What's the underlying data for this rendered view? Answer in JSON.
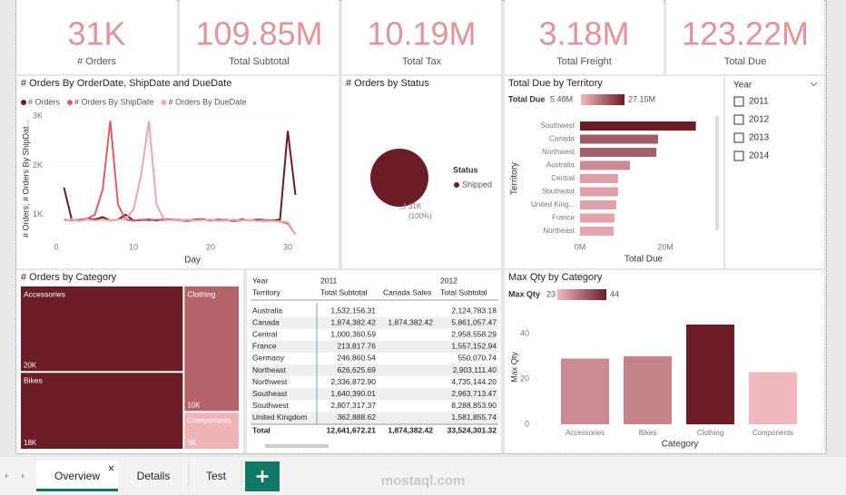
{
  "kpi_cards": [
    {
      "value": "31K",
      "label": "# Orders"
    },
    {
      "value": "109.85M",
      "label": "Total Subtotal"
    },
    {
      "value": "10.19M",
      "label": "Total Tax"
    },
    {
      "value": "3.18M",
      "label": "Total Freight"
    },
    {
      "value": "123.22M",
      "label": "Total Due"
    }
  ],
  "line_chart": {
    "type": "line",
    "title": "# Orders By OrderDate, ShipDate and DueDate",
    "x_label": "Day",
    "y_label": "# Orders, # Orders By ShipDat...",
    "x": [
      1,
      2,
      3,
      4,
      5,
      6,
      7,
      8,
      9,
      10,
      11,
      12,
      13,
      14,
      15,
      16,
      17,
      18,
      19,
      20,
      21,
      22,
      23,
      24,
      25,
      26,
      27,
      28,
      29,
      30,
      31
    ],
    "series": [
      {
        "name": "# Orders",
        "color": "#6b1c27",
        "values": [
          1550,
          900,
          880,
          920,
          900,
          950,
          880,
          900,
          1000,
          880,
          890,
          900,
          880,
          910,
          900,
          890,
          880,
          900,
          910,
          880,
          900,
          890,
          870,
          900,
          880,
          900,
          890,
          880,
          900,
          2700,
          1400
        ]
      },
      {
        "name": "# Orders By ShipDate",
        "color": "#d95f6f",
        "values": [
          900,
          880,
          900,
          920,
          1000,
          1500,
          2900,
          1200,
          900,
          880,
          900,
          880,
          900,
          890,
          900,
          880,
          870,
          890,
          900,
          880,
          890,
          900,
          870,
          880,
          890,
          880,
          870,
          880,
          860,
          820,
          600
        ]
      },
      {
        "name": "# Orders By DueDate",
        "color": "#f0a6b0",
        "values": [
          880,
          900,
          870,
          900,
          880,
          900,
          880,
          900,
          920,
          1100,
          1800,
          2900,
          1200,
          900,
          890,
          880,
          900,
          880,
          890,
          900,
          870,
          880,
          900,
          880,
          890,
          870,
          880,
          870,
          860,
          850,
          600
        ]
      }
    ],
    "xlim": [
      -1,
      32
    ],
    "ylim": [
      500,
      3000
    ],
    "xticks": [
      0,
      10,
      20,
      30
    ],
    "yticks": [
      {
        "value": 1000,
        "label": "1K"
      },
      {
        "value": 2000,
        "label": "2K"
      },
      {
        "value": 3000,
        "label": "3K"
      }
    ]
  },
  "pie_chart": {
    "type": "pie",
    "title": "# Orders by Status",
    "legend_title": "Status",
    "categories": [
      "Shipped"
    ],
    "values": [
      31000
    ],
    "value_labels": [
      "31K"
    ],
    "percent_labels": [
      "(100%)"
    ],
    "colors": [
      "#6b1c27"
    ]
  },
  "territory_chart": {
    "type": "bar",
    "orientation": "horizontal",
    "title": "Total Due by Territory",
    "x_label": "Total Due",
    "y_label": "Territory",
    "legend_title": "Total Due",
    "color_range": [
      {
        "value": 5.48,
        "label": "5.48M"
      },
      {
        "value": 27.15,
        "label": "27.15M"
      }
    ],
    "color_min": "#f2b8bf",
    "color_max": "#6b1c27",
    "categories": [
      "Southwest",
      "Canada",
      "Northwest",
      "Australia",
      "Central",
      "Southeast",
      "United King...",
      "France",
      "Northeast"
    ],
    "values": [
      27.15,
      18.3,
      17.9,
      11.7,
      8.9,
      8.9,
      8.5,
      8.1,
      7.9
    ],
    "xlim": [
      0,
      30
    ],
    "xticks": [
      {
        "value": 0,
        "label": "0M"
      },
      {
        "value": 20,
        "label": "20M"
      }
    ]
  },
  "year_slicer": {
    "title": "Year",
    "options": [
      "2011",
      "2012",
      "2013",
      "2014"
    ]
  },
  "treemap": {
    "type": "treemap",
    "title": "# Orders by Category",
    "categories": [
      "Accessories",
      "Bikes",
      "Clothing",
      "Components"
    ],
    "values": [
      20000,
      18000,
      10000,
      3000
    ],
    "value_labels": [
      "20K",
      "18K",
      "10K",
      "3K"
    ],
    "colors": [
      "#6b1c27",
      "#6b1c27",
      "#b5636b",
      "#f0b3b8"
    ]
  },
  "matrix": {
    "header_year": "Year",
    "header_rows": "Territory",
    "columns": [
      {
        "year": "2011",
        "measure": "Total Subtotal"
      },
      {
        "year": null,
        "measure": "Canada Sales"
      },
      {
        "year": "2012",
        "measure": "Total Subtotal"
      }
    ],
    "rows": [
      [
        "Australia",
        "1,532,156.31",
        null,
        "2,124,783.18"
      ],
      [
        "Canada",
        "1,874,382.42",
        "1,874,382.42",
        "5,861,057.47"
      ],
      [
        "Central",
        "1,000,360.59",
        null,
        "2,958,558.29"
      ],
      [
        "France",
        "213,817.76",
        null,
        "1,557,152.94"
      ],
      [
        "Germany",
        "246,860.54",
        null,
        "550,070.74"
      ],
      [
        "Northeast",
        "626,625.69",
        null,
        "2,903,111.40"
      ],
      [
        "Northwest",
        "2,336,872.90",
        null,
        "4,735,144.20"
      ],
      [
        "Southeast",
        "1,640,390.01",
        null,
        "2,963,713.47"
      ],
      [
        "Southwest",
        "2,807,317.37",
        null,
        "8,288,853.90"
      ],
      [
        "United Kingdom",
        "362,888.62",
        null,
        "1,581,855.74"
      ]
    ],
    "total": [
      "Total",
      "12,641,672.21",
      "1,874,382.42",
      "33,524,301.32"
    ]
  },
  "qty_chart": {
    "type": "bar",
    "title": "Max Qty by Category",
    "x_label": "Category",
    "y_label": "Max Qty",
    "legend_title": "Max Qty",
    "color_range": [
      23,
      44
    ],
    "color_min": "#f2b8bf",
    "color_max": "#6b1c27",
    "categories": [
      "Accessories",
      "Bikes",
      "Clothing",
      "Components"
    ],
    "values": [
      29,
      30,
      44,
      23
    ],
    "ylim": [
      0,
      47
    ],
    "yticks": [
      0,
      20,
      40
    ]
  },
  "tabs": [
    "Overview",
    "Details",
    "Test"
  ],
  "watermark": "mostaql.com"
}
